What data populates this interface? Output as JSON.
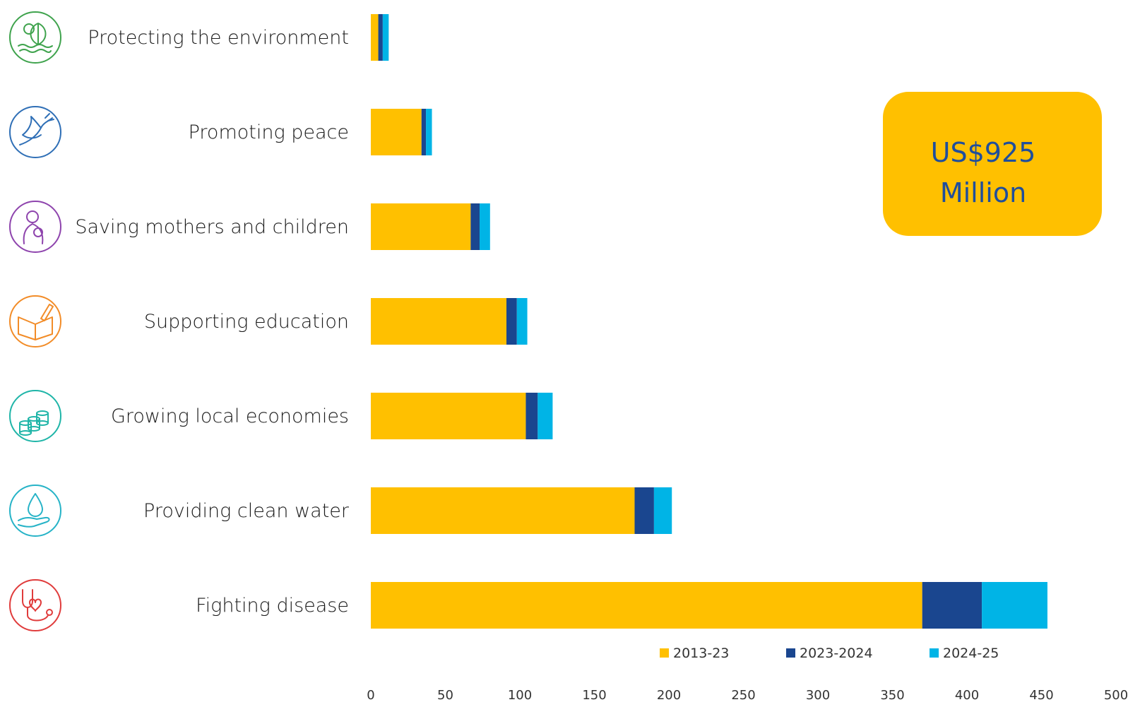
{
  "chart_data": {
    "type": "bar",
    "orientation": "horizontal",
    "stacked": true,
    "categories": [
      "Protecting the environment",
      "Promoting peace",
      "Saving mothers and children",
      "Supporting education",
      "Growing local economies",
      "Providing clean water",
      "Fighting disease"
    ],
    "series": [
      {
        "name": "2013-23",
        "color": "#FFC000",
        "values": [
          5,
          34,
          67,
          91,
          104,
          177,
          370
        ]
      },
      {
        "name": "2023-2024",
        "color": "#1A468F",
        "values": [
          3,
          3,
          6,
          7,
          8,
          13,
          40
        ]
      },
      {
        "name": "2024-25",
        "color": "#00B4E6",
        "values": [
          4,
          4,
          7,
          7,
          10,
          12,
          44
        ]
      }
    ],
    "xlim": [
      0,
      500
    ],
    "xticks": [
      "0",
      "50",
      "100",
      "150",
      "200",
      "250",
      "300",
      "350",
      "400",
      "450",
      "500"
    ],
    "legend_position": "bottom-right",
    "grid": false,
    "callout": {
      "line1": "US$925",
      "line2": "Million",
      "bg_color": "#FFC000",
      "text_color": "#1F4E9C"
    },
    "category_icons": [
      {
        "name": "environment-icon",
        "color": "#3FA34D"
      },
      {
        "name": "peace-dove-icon",
        "color": "#2F6FB6"
      },
      {
        "name": "mother-child-icon",
        "color": "#8E44AD"
      },
      {
        "name": "education-book-icon",
        "color": "#F28C28"
      },
      {
        "name": "economy-coins-icon",
        "color": "#1FB5A8"
      },
      {
        "name": "water-drop-icon",
        "color": "#26B3C7"
      },
      {
        "name": "disease-stethoscope-icon",
        "color": "#E03C3C"
      }
    ]
  }
}
